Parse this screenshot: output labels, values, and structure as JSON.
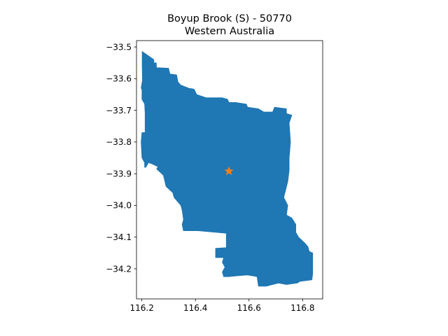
{
  "map": {
    "title_line1": "Boyup Brook (S) - 50770",
    "title_line2": "Western Australia",
    "region_color": "#1f77b4",
    "marker_color": "#ff7f0e",
    "marker_icon": "star-icon",
    "marker": {
      "lon": 116.525,
      "lat": -33.892
    },
    "xlim": [
      116.18,
      116.875
    ],
    "ylim": [
      -34.295,
      -33.48
    ],
    "x_ticks": [
      {
        "value": 116.2,
        "label": "116.2"
      },
      {
        "value": 116.4,
        "label": "116.4"
      },
      {
        "value": 116.6,
        "label": "116.6"
      },
      {
        "value": 116.8,
        "label": "116.8"
      }
    ],
    "y_ticks": [
      {
        "value": -33.5,
        "label": "−33.5"
      },
      {
        "value": -33.6,
        "label": "−33.6"
      },
      {
        "value": -33.7,
        "label": "−33.7"
      },
      {
        "value": -33.8,
        "label": "−33.8"
      },
      {
        "value": -33.9,
        "label": "−33.9"
      },
      {
        "value": -34.0,
        "label": "−34.0"
      },
      {
        "value": -34.1,
        "label": "−34.1"
      },
      {
        "value": -34.2,
        "label": "−34.2"
      }
    ],
    "boundary": [
      [
        116.201,
        -33.514
      ],
      [
        116.245,
        -33.54
      ],
      [
        116.245,
        -33.55
      ],
      [
        116.254,
        -33.55
      ],
      [
        116.255,
        -33.565
      ],
      [
        116.3,
        -33.567
      ],
      [
        116.305,
        -33.585
      ],
      [
        116.33,
        -33.588
      ],
      [
        116.335,
        -33.61
      ],
      [
        116.345,
        -33.62
      ],
      [
        116.375,
        -33.63
      ],
      [
        116.395,
        -33.633
      ],
      [
        116.405,
        -33.65
      ],
      [
        116.44,
        -33.66
      ],
      [
        116.5,
        -33.66
      ],
      [
        116.52,
        -33.665
      ],
      [
        116.525,
        -33.675
      ],
      [
        116.55,
        -33.675
      ],
      [
        116.59,
        -33.68
      ],
      [
        116.595,
        -33.69
      ],
      [
        116.635,
        -33.695
      ],
      [
        116.655,
        -33.705
      ],
      [
        116.688,
        -33.705
      ],
      [
        116.695,
        -33.69
      ],
      [
        116.74,
        -33.695
      ],
      [
        116.74,
        -33.71
      ],
      [
        116.76,
        -33.715
      ],
      [
        116.75,
        -33.74
      ],
      [
        116.755,
        -33.8
      ],
      [
        116.75,
        -33.85
      ],
      [
        116.75,
        -33.89
      ],
      [
        116.745,
        -33.925
      ],
      [
        116.73,
        -33.975
      ],
      [
        116.745,
        -34.0
      ],
      [
        116.74,
        -34.03
      ],
      [
        116.76,
        -34.04
      ],
      [
        116.775,
        -34.06
      ],
      [
        116.775,
        -34.085
      ],
      [
        116.785,
        -34.1
      ],
      [
        116.81,
        -34.12
      ],
      [
        116.82,
        -34.13
      ],
      [
        116.825,
        -34.145
      ],
      [
        116.838,
        -34.15
      ],
      [
        116.838,
        -34.215
      ],
      [
        116.835,
        -34.235
      ],
      [
        116.79,
        -34.24
      ],
      [
        116.78,
        -34.245
      ],
      [
        116.74,
        -34.25
      ],
      [
        116.71,
        -34.245
      ],
      [
        116.665,
        -34.255
      ],
      [
        116.635,
        -34.255
      ],
      [
        116.63,
        -34.225
      ],
      [
        116.595,
        -34.22
      ],
      [
        116.56,
        -34.222
      ],
      [
        116.525,
        -34.225
      ],
      [
        116.505,
        -34.225
      ],
      [
        116.5,
        -34.21
      ],
      [
        116.51,
        -34.195
      ],
      [
        116.5,
        -34.18
      ],
      [
        116.505,
        -34.165
      ],
      [
        116.475,
        -34.165
      ],
      [
        116.475,
        -34.135
      ],
      [
        116.515,
        -34.133
      ],
      [
        116.515,
        -34.088
      ],
      [
        116.41,
        -34.08
      ],
      [
        116.355,
        -34.08
      ],
      [
        116.35,
        -34.06
      ],
      [
        116.355,
        -34.045
      ],
      [
        116.35,
        -34.015
      ],
      [
        116.345,
        -34.0
      ],
      [
        116.32,
        -33.975
      ],
      [
        116.315,
        -33.96
      ],
      [
        116.29,
        -33.94
      ],
      [
        116.28,
        -33.905
      ],
      [
        116.255,
        -33.885
      ],
      [
        116.26,
        -33.878
      ],
      [
        116.24,
        -33.87
      ],
      [
        116.225,
        -33.865
      ],
      [
        116.215,
        -33.88
      ],
      [
        116.21,
        -33.88
      ],
      [
        116.21,
        -33.865
      ],
      [
        116.2,
        -33.85
      ],
      [
        116.197,
        -33.8
      ],
      [
        116.2,
        -33.77
      ],
      [
        116.212,
        -33.77
      ],
      [
        116.212,
        -33.71
      ],
      [
        116.21,
        -33.68
      ],
      [
        116.2,
        -33.665
      ],
      [
        116.2,
        -33.635
      ],
      [
        116.197,
        -33.63
      ],
      [
        116.202,
        -33.605
      ],
      [
        116.201,
        -33.56
      ]
    ]
  }
}
